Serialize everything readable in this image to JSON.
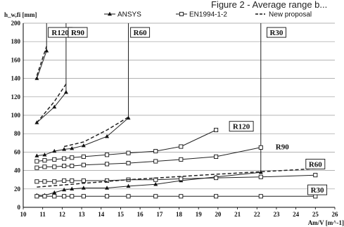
{
  "page": {
    "top_text": "Figure 2 - Average range b..."
  },
  "chart_data": {
    "type": "line",
    "ylabel": "h_w,fi [mm]",
    "xlabel": "Am/V [m^-1]",
    "xlim": [
      10,
      26
    ],
    "ylim": [
      0,
      200
    ],
    "xticks": [
      10,
      11,
      12,
      13,
      14,
      15,
      16,
      17,
      18,
      19,
      20,
      21,
      22,
      23,
      24,
      25,
      26
    ],
    "yticks": [
      0,
      20,
      40,
      60,
      80,
      100,
      120,
      140,
      160,
      180,
      200
    ],
    "grid": {
      "horizontal": true,
      "vertical": false
    },
    "legend": {
      "placement": "top",
      "entries": [
        {
          "label": "ANSYS",
          "style": "solid-triangle"
        },
        {
          "label": "EN1994-1-2",
          "style": "solid-square"
        },
        {
          "label": "New proposal",
          "style": "dashed"
        }
      ]
    },
    "series": [
      {
        "name": "ANSYS",
        "group": "R120",
        "marker": "triangle",
        "x": [
          10.7,
          11.2
        ],
        "y": [
          140,
          170
        ]
      },
      {
        "name": "ANSYS",
        "group": "R90",
        "marker": "triangle",
        "x": [
          10.7,
          11.6,
          12.2
        ],
        "y": [
          92,
          109,
          125
        ]
      },
      {
        "name": "ANSYS",
        "group": "R60",
        "marker": "triangle",
        "x": [
          10.7,
          11.1,
          11.6,
          12.1,
          12.5,
          13.1,
          14.3,
          15.4
        ],
        "y": [
          56,
          57,
          61,
          63,
          64,
          67,
          77,
          97
        ]
      },
      {
        "name": "ANSYS",
        "group": "R30",
        "marker": "triangle",
        "x": [
          10.7,
          11.1,
          11.6,
          12.1,
          12.5,
          13.1,
          14.3,
          15.4,
          16.8,
          18.1,
          19.9,
          22.2
        ],
        "y": [
          13,
          13,
          16,
          19,
          20,
          21,
          21,
          23,
          25,
          29,
          33,
          38
        ]
      },
      {
        "name": "EN1994-1-2",
        "group": "R120",
        "marker": "square",
        "x": [
          10.7,
          11.1,
          11.6,
          12.1,
          12.5,
          13.1,
          14.3,
          15.4,
          16.8,
          18.1,
          19.9
        ],
        "y": [
          50,
          51,
          52,
          53,
          54,
          55,
          57,
          59,
          61,
          66,
          84
        ]
      },
      {
        "name": "EN1994-1-2",
        "group": "R90",
        "marker": "square",
        "x": [
          10.7,
          11.1,
          11.6,
          12.1,
          12.5,
          13.1,
          14.3,
          15.4,
          16.8,
          18.1,
          19.9,
          22.2
        ],
        "y": [
          43,
          44,
          44,
          45,
          45,
          46,
          47,
          48,
          50,
          52,
          55,
          65
        ]
      },
      {
        "name": "EN1994-1-2",
        "group": "R60",
        "marker": "square",
        "x": [
          10.7,
          11.1,
          11.6,
          12.1,
          12.5,
          13.1,
          14.3,
          15.4,
          16.8,
          18.1,
          19.9,
          22.2,
          25
        ],
        "y": [
          28,
          28,
          28,
          29,
          29,
          29,
          29,
          30,
          30,
          31,
          32,
          33,
          35
        ]
      },
      {
        "name": "EN1994-1-2",
        "group": "R30",
        "marker": "square",
        "x": [
          10.7,
          11.1,
          11.6,
          12.1,
          12.5,
          13.1,
          14.3,
          15.4,
          16.8,
          18.1,
          19.9,
          22.2,
          25
        ],
        "y": [
          12,
          12,
          12,
          12,
          12,
          12,
          12,
          12,
          12,
          12,
          12,
          12,
          12
        ]
      },
      {
        "name": "New proposal",
        "group": "R120",
        "marker": "none",
        "x": [
          10.7,
          11.2
        ],
        "y": [
          143,
          175
        ]
      },
      {
        "name": "New proposal",
        "group": "R90",
        "marker": "none",
        "x": [
          10.7,
          11.6,
          12.2
        ],
        "y": [
          92,
          115,
          134
        ]
      },
      {
        "name": "New proposal",
        "group": "R60",
        "marker": "none",
        "x": [
          12.1,
          13.1,
          14.3,
          15.4
        ],
        "y": [
          66,
          71,
          84,
          98
        ]
      },
      {
        "name": "New proposal",
        "group": "R30",
        "marker": "none",
        "x": [
          10.7,
          15.4,
          20,
          25
        ],
        "y": [
          22,
          30,
          36,
          42
        ]
      }
    ],
    "verticals": [
      {
        "x": 11.2,
        "y_from": 170,
        "y_to": 200
      },
      {
        "x": 12.2,
        "y_from": 125,
        "y_to": 200
      },
      {
        "x": 15.4,
        "y_from": 97,
        "y_to": 200
      },
      {
        "x": 22.2,
        "y_from": 38,
        "y_to": 200
      }
    ],
    "annotations": [
      {
        "text": "R120",
        "x": 11.9,
        "y": 190,
        "boxed": true
      },
      {
        "text": "R90",
        "x": 12.8,
        "y": 190,
        "boxed": true
      },
      {
        "text": "R60",
        "x": 16.0,
        "y": 190,
        "boxed": true
      },
      {
        "text": "R30",
        "x": 23.0,
        "y": 190,
        "boxed": true
      },
      {
        "text": "R120",
        "x": 21.2,
        "y": 88,
        "boxed": true
      },
      {
        "text": "R90",
        "x": 23.3,
        "y": 66,
        "boxed": false
      },
      {
        "text": "R60",
        "x": 25.0,
        "y": 47,
        "boxed": true
      },
      {
        "text": "R30",
        "x": 25.1,
        "y": 19,
        "boxed": true
      }
    ]
  }
}
